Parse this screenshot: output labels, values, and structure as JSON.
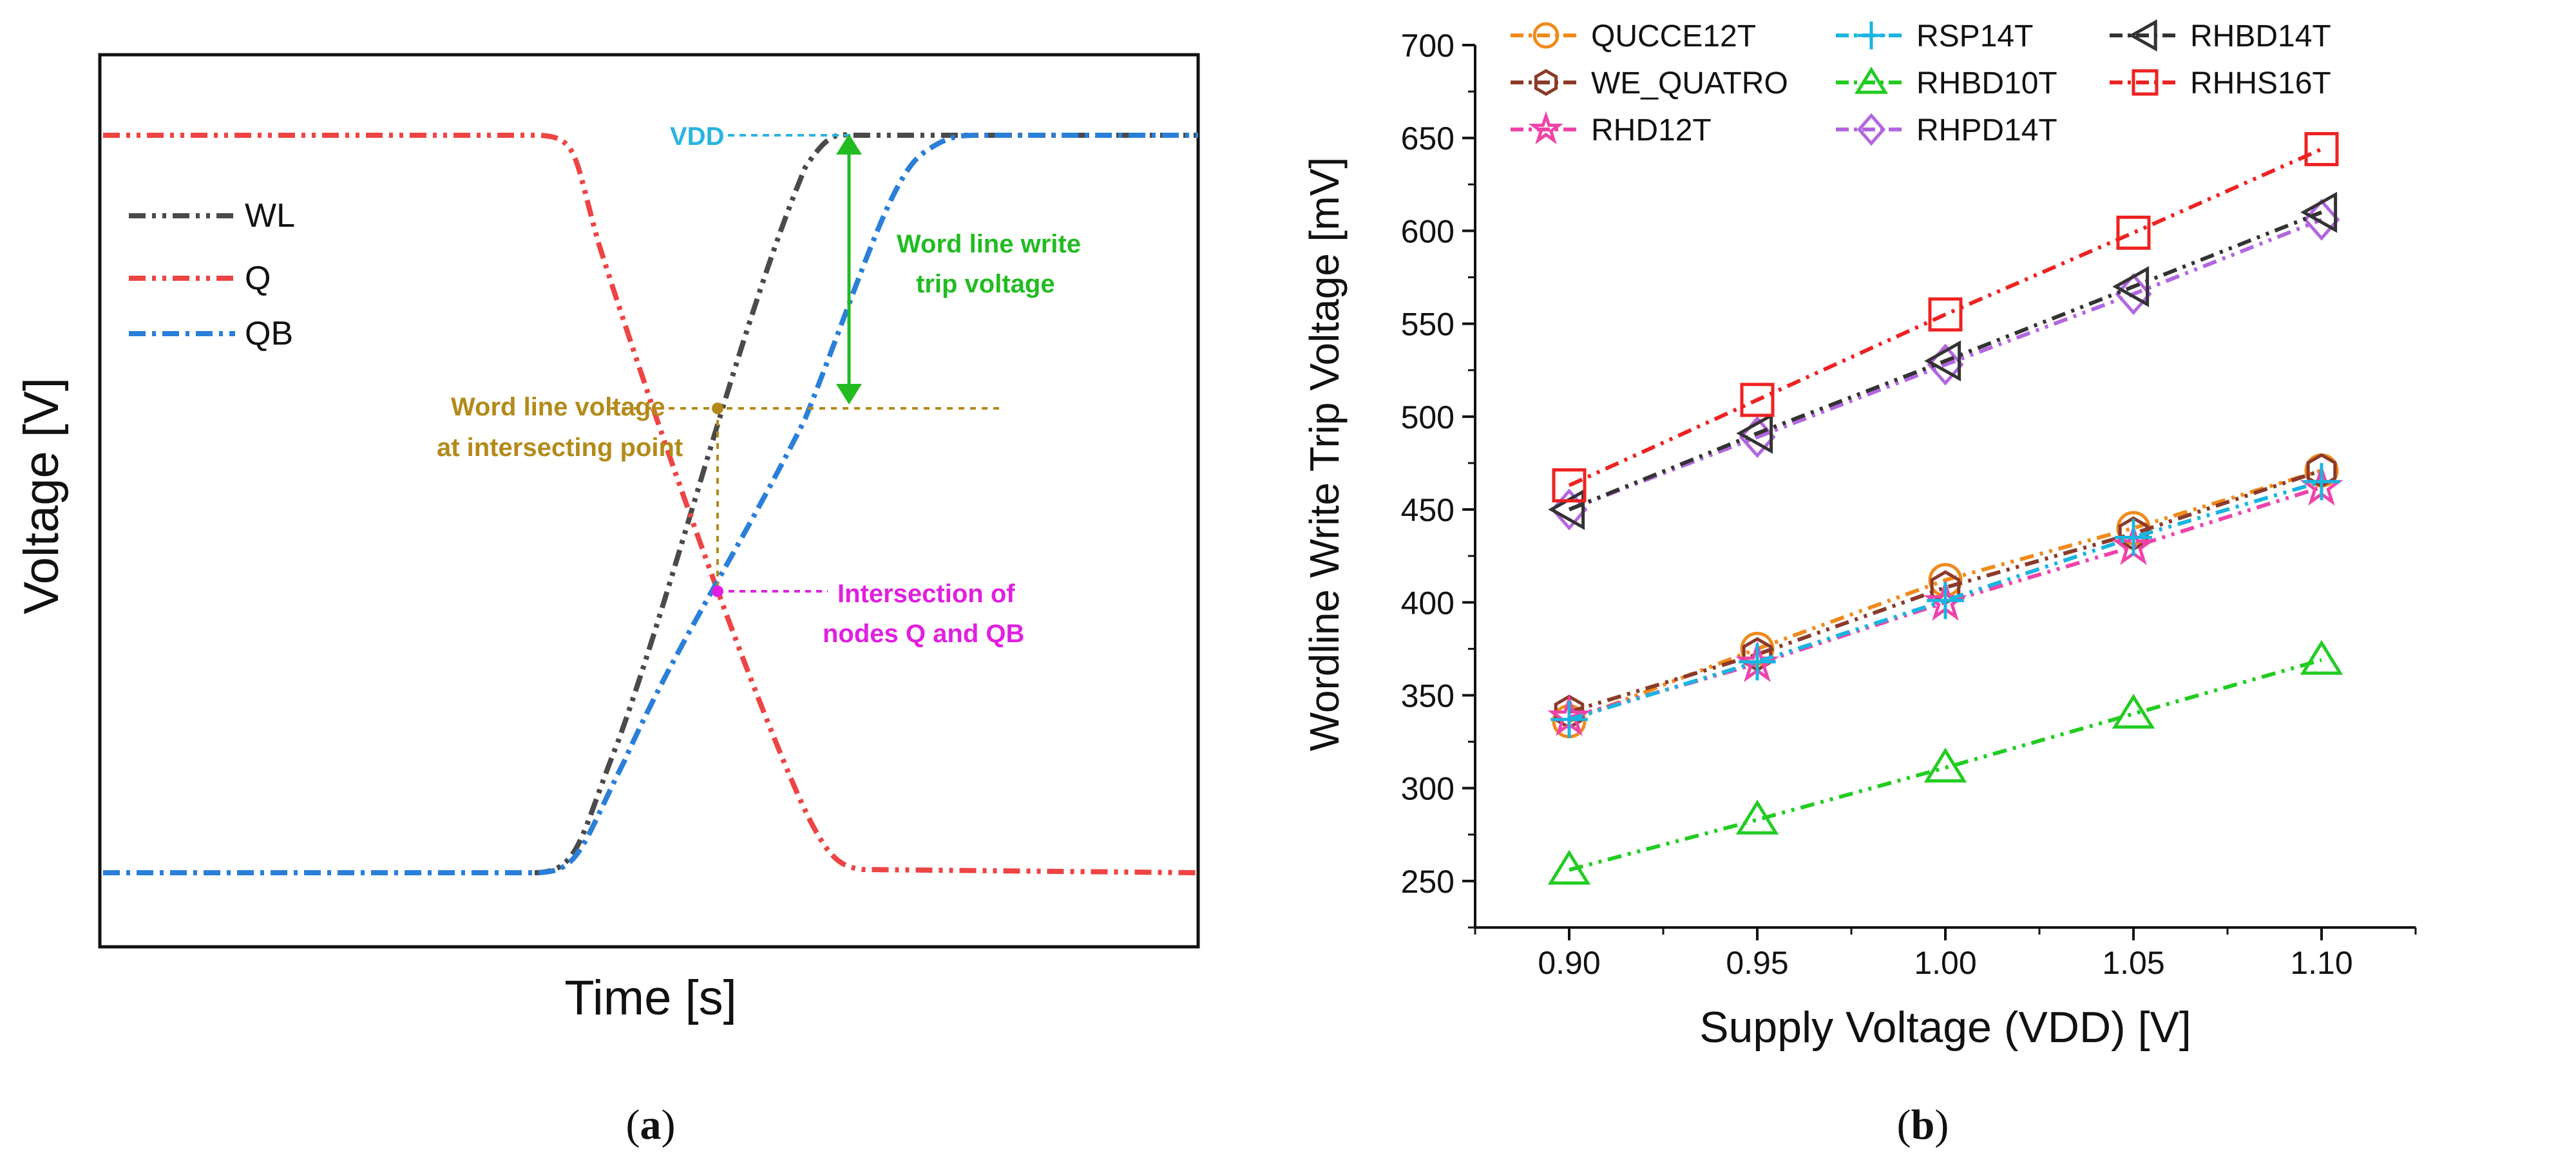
{
  "panel_a": {
    "label_open": "(",
    "label_letter": "a",
    "label_close": ")",
    "xlabel": "Time [s]",
    "ylabel": "Voltage [V]",
    "legend": [
      {
        "name": "WL",
        "color": "#4a4a4a"
      },
      {
        "name": "Q",
        "color": "#ee4444"
      },
      {
        "name": "QB",
        "color": "#2a7fd8"
      }
    ],
    "annotations": {
      "vdd": "VDD",
      "write_trip_line1": "Word line write",
      "write_trip_line2": "trip voltage",
      "wl_voltage_line1": "Word line voltage",
      "wl_voltage_line2": "at intersecting point",
      "intersection_line1": "Intersection of",
      "intersection_line2": "nodes Q and QB"
    },
    "colors": {
      "vdd": "#2ab4e0",
      "write_trip": "#22bb22",
      "wl_voltage": "#b38a1a",
      "intersection": "#e020e0"
    }
  },
  "chart_data": {
    "type": "line",
    "title": "",
    "xlabel": "Supply Voltage (VDD) [V]",
    "ylabel": "Wordline Write Trip Voltage [mV]",
    "xlim": [
      0.875,
      1.125
    ],
    "ylim": [
      225,
      700
    ],
    "x": [
      0.9,
      0.95,
      1.0,
      1.05,
      1.1
    ],
    "x_tick_labels": [
      "0.90",
      "0.95",
      "1.00",
      "1.05",
      "1.10"
    ],
    "y_ticks": [
      250,
      300,
      350,
      400,
      450,
      500,
      550,
      600,
      650,
      700
    ],
    "y_tick_labels": [
      "250",
      "300",
      "350",
      "400",
      "450",
      "500",
      "550",
      "600",
      "650",
      "700"
    ],
    "legend_position": "top",
    "series": [
      {
        "name": "QUCCE12T",
        "color": "#f08a1c",
        "marker": "circle",
        "values": [
          336,
          375,
          412,
          440,
          471
        ]
      },
      {
        "name": "WE_QUATRO",
        "color": "#8b3a2a",
        "marker": "hexagon",
        "values": [
          341,
          372,
          408,
          437,
          471
        ]
      },
      {
        "name": "RHD12T",
        "color": "#ee44aa",
        "marker": "star",
        "values": [
          338,
          367,
          400,
          430,
          462
        ]
      },
      {
        "name": "RSP14T",
        "color": "#1ab4e0",
        "marker": "plus",
        "values": [
          337,
          368,
          401,
          435,
          465
        ]
      },
      {
        "name": "RHBD10T",
        "color": "#22cc22",
        "marker": "triangle",
        "values": [
          256,
          283,
          311,
          340,
          369
        ]
      },
      {
        "name": "RHPD14T",
        "color": "#b266e0",
        "marker": "diamond",
        "values": [
          450,
          489,
          528,
          566,
          606
        ]
      },
      {
        "name": "RHBD14T",
        "color": "#333333",
        "marker": "triangle-left",
        "values": [
          450,
          491,
          530,
          570,
          610
        ]
      },
      {
        "name": "RHHS16T",
        "color": "#ee2222",
        "marker": "square",
        "values": [
          463,
          509,
          555,
          599,
          644
        ]
      }
    ],
    "panel_label_open": "(",
    "panel_label_letter": "b",
    "panel_label_close": ")"
  }
}
